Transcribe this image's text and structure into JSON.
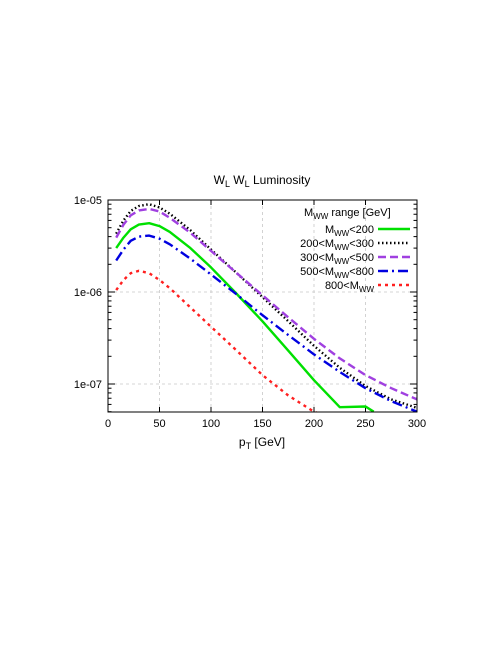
{
  "chart_data": {
    "type": "line",
    "title": {
      "main": "W",
      "sub1": "L",
      "mid": " W",
      "sub2": "L",
      "tail": " Luminosity"
    },
    "xlabel": {
      "main": "p",
      "sub": "T",
      "tail": " [GeV]"
    },
    "ylabel": "",
    "xlim": [
      0,
      300
    ],
    "ylim": [
      5e-08,
      1e-05
    ],
    "yscale": "log",
    "grid": true,
    "legend_position": "top-right",
    "legend_title": {
      "main": "M",
      "sub": "WW",
      "tail": " range [GeV]"
    },
    "x_ticks": [
      0,
      50,
      100,
      150,
      200,
      250,
      300
    ],
    "x_tick_labels": [
      "0",
      "50",
      "100",
      "150",
      "200",
      "250",
      "300"
    ],
    "y_ticks": [
      1e-07,
      1e-06,
      1e-05
    ],
    "y_tick_labels": [
      "1e-07",
      "1e-06",
      "1e-05"
    ],
    "series": [
      {
        "name": {
          "pre": "M",
          "sub": "WW",
          "post": "<200"
        },
        "color": "#00e000",
        "dash": "",
        "x": [
          8,
          15,
          22,
          30,
          40,
          50,
          60,
          80,
          100,
          125,
          150,
          175,
          200,
          225,
          250,
          258
        ],
        "y": [
          3e-06,
          3.9e-06,
          4.8e-06,
          5.4e-06,
          5.6e-06,
          5.2e-06,
          4.5e-06,
          3e-06,
          1.85e-06,
          9.5e-07,
          4.8e-07,
          2.3e-07,
          1.1e-07,
          5.6e-08,
          5.7e-08,
          5e-08
        ]
      },
      {
        "name": {
          "pre": "200<M",
          "sub": "WW",
          "post": "<300"
        },
        "color": "#000000",
        "dash": "1.5,2.5",
        "x": [
          8,
          15,
          22,
          30,
          40,
          50,
          60,
          80,
          100,
          125,
          150,
          175,
          200,
          225,
          250,
          275,
          300
        ],
        "y": [
          4.3e-06,
          6e-06,
          7.6e-06,
          8.6e-06,
          9e-06,
          8.3e-06,
          7.1e-06,
          4.7e-06,
          2.9e-06,
          1.6e-06,
          8.8e-07,
          4.8e-07,
          2.6e-07,
          1.5e-07,
          9.5e-08,
          6.8e-08,
          5.5e-08
        ]
      },
      {
        "name": {
          "pre": "300<M",
          "sub": "WW",
          "post": "<500"
        },
        "color": "#a040e0",
        "dash": "8,4",
        "x": [
          8,
          15,
          22,
          30,
          40,
          50,
          60,
          80,
          100,
          125,
          150,
          175,
          200,
          225,
          250,
          275,
          300
        ],
        "y": [
          3.9e-06,
          5.4e-06,
          6.8e-06,
          7.7e-06,
          8e-06,
          7.5e-06,
          6.4e-06,
          4.4e-06,
          2.8e-06,
          1.6e-06,
          9.2e-07,
          5.3e-07,
          3.1e-07,
          1.9e-07,
          1.25e-07,
          9e-08,
          6.8e-08
        ]
      },
      {
        "name": {
          "pre": "500<M",
          "sub": "WW",
          "post": "<800"
        },
        "color": "#0000e0",
        "dash": "10,4,2,4",
        "x": [
          8,
          15,
          22,
          30,
          40,
          50,
          60,
          80,
          100,
          125,
          150,
          175,
          200,
          225,
          250,
          275,
          300
        ],
        "y": [
          2.2e-06,
          2.9e-06,
          3.6e-06,
          4e-06,
          4.1e-06,
          3.8e-06,
          3.3e-06,
          2.3e-06,
          1.55e-06,
          9.4e-07,
          5.6e-07,
          3.4e-07,
          2.1e-07,
          1.35e-07,
          9e-08,
          6.5e-08,
          5e-08
        ]
      },
      {
        "name": {
          "pre": "800<M",
          "sub": "WW",
          "post": ""
        },
        "color": "#ff2020",
        "dash": "3,4",
        "x": [
          8,
          15,
          22,
          30,
          40,
          50,
          60,
          80,
          100,
          125,
          150,
          175,
          200,
          220
        ],
        "y": [
          1.05e-06,
          1.35e-06,
          1.6e-06,
          1.7e-06,
          1.6e-06,
          1.35e-06,
          1.1e-06,
          6.8e-07,
          4.2e-07,
          2.3e-07,
          1.25e-07,
          7.5e-08,
          5e-08,
          4.2e-08
        ]
      }
    ]
  }
}
